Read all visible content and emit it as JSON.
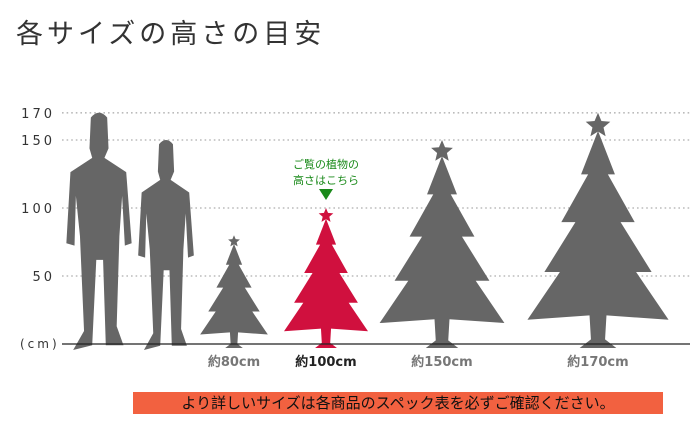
{
  "title": "各サイズの高さの目安",
  "axis": {
    "unit_label": "(cm)",
    "ticks": [
      50,
      100,
      150,
      170
    ],
    "tick_labels": [
      "50",
      "100",
      "150",
      "170"
    ]
  },
  "silhouettes": [
    {
      "name": "man",
      "height_cm": 170
    },
    {
      "name": "woman",
      "height_cm": 150
    }
  ],
  "trees": [
    {
      "label": "約80cm",
      "height_cm": 80,
      "color": "#666666",
      "highlight": false
    },
    {
      "label": "約100cm",
      "height_cm": 100,
      "color": "#d0103e",
      "highlight": true
    },
    {
      "label": "約150cm",
      "height_cm": 150,
      "color": "#666666",
      "highlight": false
    },
    {
      "label": "約170cm",
      "height_cm": 170,
      "color": "#666666",
      "highlight": false
    }
  ],
  "callout": {
    "line1": "ご覧の植物の",
    "line2": "高さはこちら",
    "color": "#1a8a1a"
  },
  "banner": {
    "text": "より詳しいサイズは各商品のスペック表を必ずご確認ください。",
    "color": "#f26140"
  }
}
